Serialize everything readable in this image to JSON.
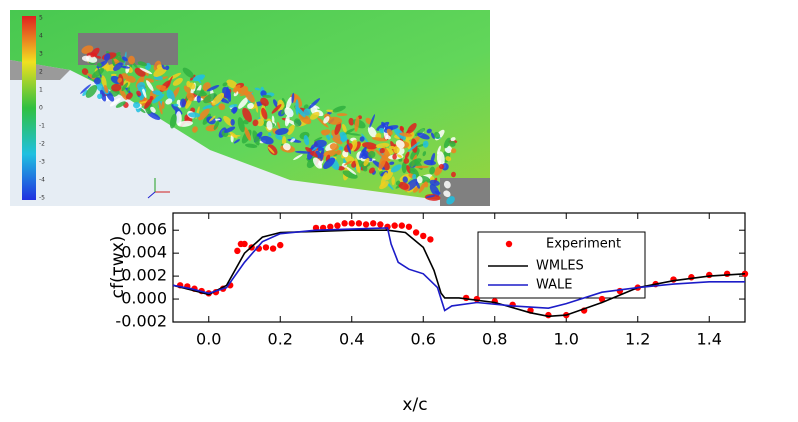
{
  "figure": {
    "colorbar": {
      "labels": [
        "5",
        "4",
        "3",
        "2",
        "1",
        "0",
        "-1",
        "-2",
        "-3",
        "-4",
        "-5"
      ]
    }
  },
  "chart_data": {
    "type": "line",
    "x_label": "x/c",
    "y_label": "cf(τwx)",
    "xlim": [
      -0.1,
      1.5
    ],
    "xticks": [
      {
        "value": 0,
        "label": "0.0"
      },
      0.2,
      0.4,
      0.6,
      0.8,
      {
        "value": 1,
        "label": "1.0"
      },
      1.2,
      1.4
    ],
    "ylim": [
      -0.002,
      0.0075
    ],
    "yticks": [
      -0.002,
      {
        "value": 0,
        "label": "0.000"
      },
      0.002,
      0.004,
      0.006
    ],
    "legend": "upper right",
    "series": [
      {
        "name": "Experiment",
        "color": "#ff0000",
        "style": "markers",
        "x": [
          -0.08,
          -0.06,
          -0.04,
          -0.02,
          0.0,
          0.02,
          0.04,
          0.06,
          0.08,
          0.09,
          0.1,
          0.12,
          0.14,
          0.16,
          0.18,
          0.2,
          0.3,
          0.32,
          0.34,
          0.36,
          0.38,
          0.4,
          0.42,
          0.44,
          0.46,
          0.48,
          0.5,
          0.52,
          0.54,
          0.56,
          0.58,
          0.6,
          0.62,
          0.72,
          0.75,
          0.8,
          0.85,
          0.9,
          0.95,
          1.0,
          1.05,
          1.1,
          1.15,
          1.2,
          1.25,
          1.3,
          1.35,
          1.4,
          1.45,
          1.5
        ],
        "values": [
          0.0012,
          0.0011,
          0.0009,
          0.0007,
          0.0005,
          0.0006,
          0.0009,
          0.0012,
          0.0042,
          0.0048,
          0.0048,
          0.0045,
          0.0044,
          0.0045,
          0.0044,
          0.0047,
          0.0062,
          0.0062,
          0.0063,
          0.0064,
          0.0066,
          0.0066,
          0.0066,
          0.0065,
          0.0066,
          0.0065,
          0.0063,
          0.0064,
          0.0064,
          0.0063,
          0.0058,
          0.0055,
          0.0052,
          0.0001,
          0.0,
          -0.0002,
          -0.0005,
          -0.001,
          -0.0014,
          -0.0014,
          -0.001,
          0.0,
          0.0007,
          0.001,
          0.0013,
          0.0017,
          0.0019,
          0.0021,
          0.0022,
          0.0022
        ]
      },
      {
        "name": "WMLES",
        "color": "#000000",
        "style": "line",
        "x": [
          -0.1,
          -0.05,
          0.0,
          0.05,
          0.1,
          0.15,
          0.2,
          0.3,
          0.4,
          0.5,
          0.55,
          0.6,
          0.63,
          0.65,
          0.66,
          0.7,
          0.8,
          0.9,
          0.95,
          1.0,
          1.1,
          1.2,
          1.3,
          1.4,
          1.5
        ],
        "values": [
          0.0012,
          0.0008,
          0.0004,
          0.0012,
          0.004,
          0.0054,
          0.0058,
          0.0059,
          0.006,
          0.006,
          0.0058,
          0.0045,
          0.0025,
          0.0005,
          0.0001,
          0.0001,
          -0.0003,
          -0.0012,
          -0.0015,
          -0.0014,
          -0.0003,
          0.001,
          0.0016,
          0.002,
          0.0022
        ]
      },
      {
        "name": "WALE",
        "color": "#1c1cc8",
        "style": "line",
        "x": [
          -0.1,
          -0.05,
          0.0,
          0.05,
          0.1,
          0.15,
          0.2,
          0.3,
          0.4,
          0.5,
          0.51,
          0.53,
          0.56,
          0.6,
          0.64,
          0.66,
          0.68,
          0.75,
          0.85,
          0.95,
          1.0,
          1.1,
          1.2,
          1.3,
          1.4,
          1.5
        ],
        "values": [
          0.0012,
          0.0009,
          0.0005,
          0.001,
          0.0032,
          0.005,
          0.0057,
          0.006,
          0.0061,
          0.0062,
          0.0048,
          0.0032,
          0.0026,
          0.0022,
          0.001,
          -0.001,
          -0.0006,
          -0.0003,
          -0.0006,
          -0.0008,
          -0.0004,
          0.0006,
          0.001,
          0.0013,
          0.0015,
          0.0015
        ]
      }
    ]
  }
}
